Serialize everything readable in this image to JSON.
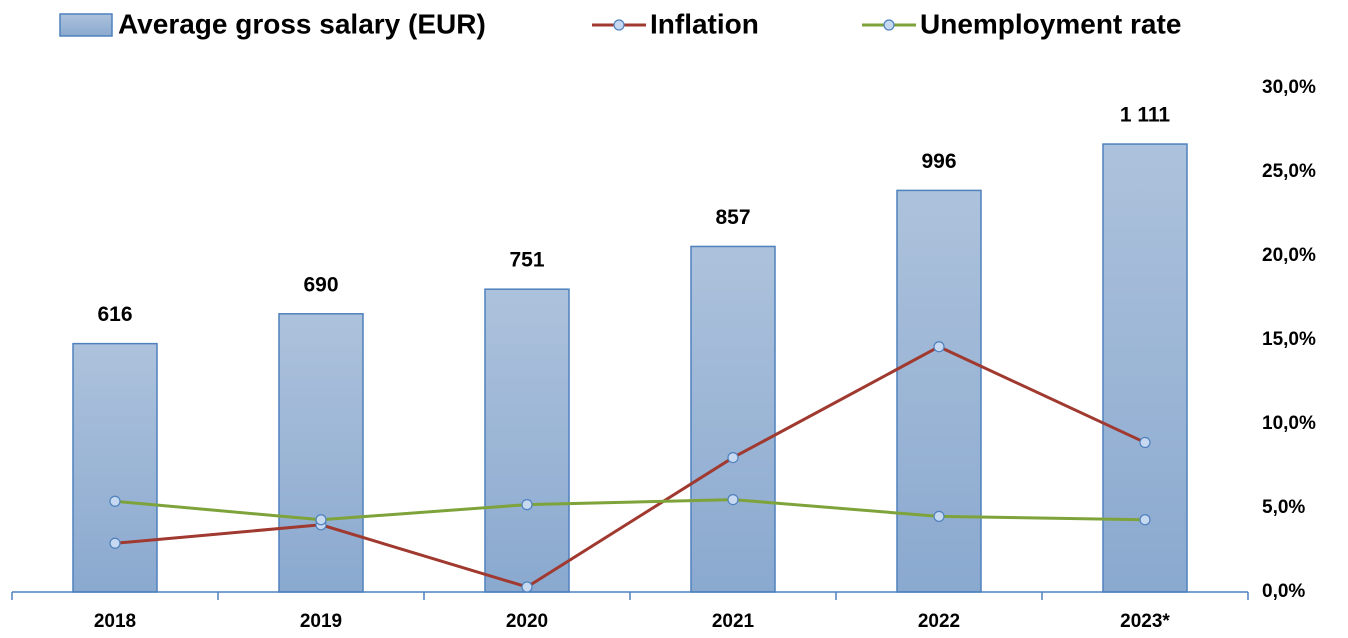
{
  "chart_data": {
    "type": "bar",
    "categories": [
      "2018",
      "2019",
      "2020",
      "2021",
      "2022",
      "2023*"
    ],
    "series": [
      {
        "name": "Average gross salary (EUR)",
        "type": "bar",
        "color": "#95b3d7",
        "axis": "y",
        "values": [
          616,
          690,
          751,
          857,
          996,
          1111
        ],
        "value_labels": [
          "616",
          "690",
          "751",
          "857",
          "996",
          "1 111"
        ]
      },
      {
        "name": "Inflation",
        "type": "line",
        "color": "#a0392f",
        "axis": "y2",
        "values": [
          2.9,
          4.0,
          0.3,
          8.0,
          14.6,
          8.9
        ]
      },
      {
        "name": "Unemployment rate",
        "type": "line",
        "color": "#7ea33a",
        "axis": "y2",
        "values": [
          5.4,
          4.3,
          5.2,
          5.5,
          4.5,
          4.3
        ]
      }
    ],
    "ylim": [
      0,
      1250
    ],
    "yticks": [],
    "y2lim": [
      0,
      30
    ],
    "y2ticks": [
      {
        "value": 0,
        "label": "0,0%"
      },
      {
        "value": 5,
        "label": "5,0%"
      },
      {
        "value": 10,
        "label": "10,0%"
      },
      {
        "value": 15,
        "label": "15,0%"
      },
      {
        "value": 20,
        "label": "20,0%"
      },
      {
        "value": 25,
        "label": "25,0%"
      },
      {
        "value": 30,
        "label": "30,0%"
      }
    ],
    "legend": "top"
  }
}
